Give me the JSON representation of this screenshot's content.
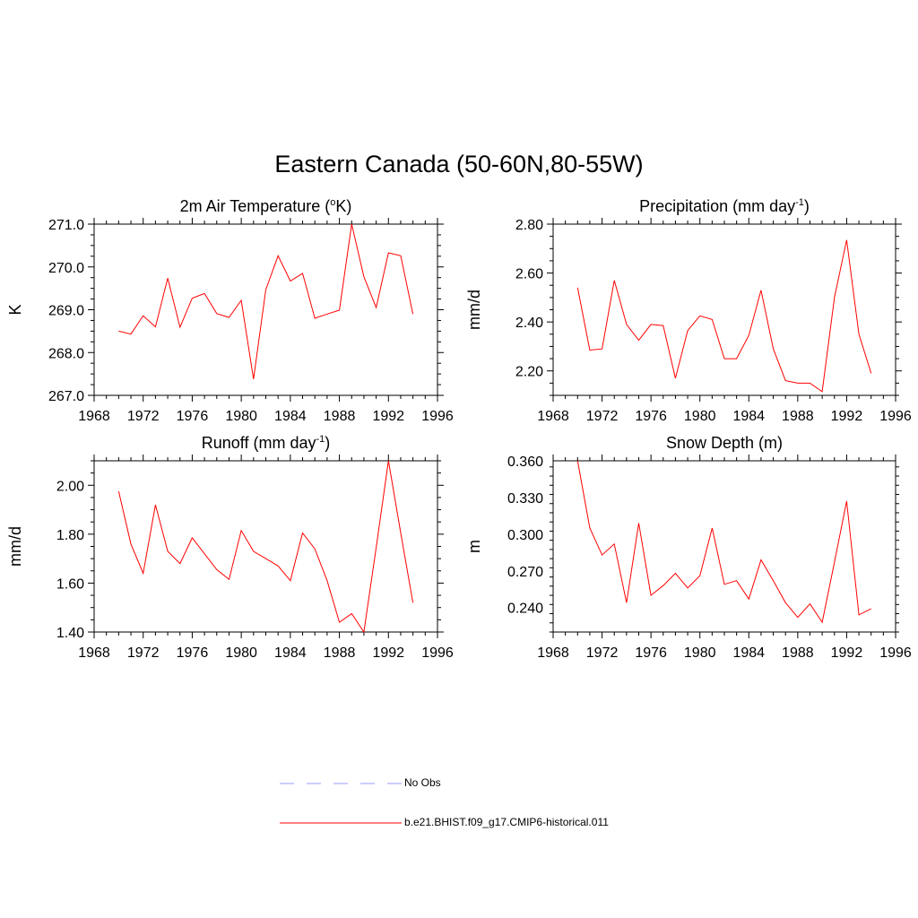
{
  "figure": {
    "title": "Eastern Canada (50-60N,80-55W)"
  },
  "legend": [
    {
      "label": "No Obs",
      "color": "#9b9bff",
      "dash": true
    },
    {
      "label": "b.e21.BHIST.f09_g17.CMIP6-historical.011",
      "color": "#ff0000",
      "dash": false
    }
  ],
  "chart_data": [
    {
      "type": "line",
      "title": "2m Air Temperature (",
      "title_sup": "o",
      "title_after": "K)",
      "ylabel": "K",
      "xlim": [
        1968,
        1996
      ],
      "xticks": [
        1968,
        1972,
        1976,
        1980,
        1984,
        1988,
        1992,
        1996
      ],
      "ylim": [
        267.0,
        271.0
      ],
      "yticks": [
        267.0,
        268.0,
        269.0,
        270.0,
        271.0
      ],
      "ydecimals": 1,
      "series": [
        {
          "color": "#ff0000",
          "x": [
            1970,
            1971,
            1972,
            1973,
            1974,
            1975,
            1976,
            1977,
            1978,
            1979,
            1980,
            1981,
            1982,
            1983,
            1984,
            1985,
            1986,
            1987,
            1988,
            1989,
            1990,
            1991,
            1992,
            1993,
            1994
          ],
          "values": [
            268.5,
            268.43,
            268.86,
            268.6,
            269.74,
            268.59,
            269.27,
            269.38,
            268.91,
            268.82,
            269.22,
            267.38,
            269.47,
            270.26,
            269.67,
            269.85,
            268.8,
            268.9,
            268.99,
            271.0,
            269.77,
            269.05,
            270.33,
            270.26,
            268.9
          ]
        }
      ]
    },
    {
      "type": "line",
      "title": "Precipitation (mm day",
      "title_sup": "-1",
      "title_after": ")",
      "ylabel": "mm/d",
      "xlim": [
        1968,
        1996
      ],
      "xticks": [
        1968,
        1972,
        1976,
        1980,
        1984,
        1988,
        1992,
        1996
      ],
      "ylim": [
        2.1,
        2.8
      ],
      "yticks": [
        2.2,
        2.4,
        2.6,
        2.8
      ],
      "ydecimals": 2,
      "series": [
        {
          "color": "#ff0000",
          "x": [
            1970,
            1971,
            1972,
            1973,
            1974,
            1975,
            1976,
            1977,
            1978,
            1979,
            1980,
            1981,
            1982,
            1983,
            1984,
            1985,
            1986,
            1987,
            1988,
            1989,
            1990,
            1991,
            1992,
            1993,
            1994
          ],
          "values": [
            2.54,
            2.285,
            2.29,
            2.57,
            2.39,
            2.325,
            2.39,
            2.385,
            2.17,
            2.365,
            2.425,
            2.41,
            2.25,
            2.25,
            2.345,
            2.53,
            2.29,
            2.16,
            2.15,
            2.15,
            2.115,
            2.5,
            2.735,
            2.35,
            2.19
          ]
        }
      ]
    },
    {
      "type": "line",
      "title": "Runoff (mm day",
      "title_sup": "-1",
      "title_after": ")",
      "ylabel": "mm/d",
      "xlim": [
        1968,
        1996
      ],
      "xticks": [
        1968,
        1972,
        1976,
        1980,
        1984,
        1988,
        1992,
        1996
      ],
      "ylim": [
        1.4,
        2.1
      ],
      "yticks": [
        1.4,
        1.6,
        1.8,
        2.0
      ],
      "ydecimals": 2,
      "series": [
        {
          "color": "#ff0000",
          "x": [
            1970,
            1971,
            1972,
            1973,
            1974,
            1975,
            1976,
            1977,
            1978,
            1979,
            1980,
            1981,
            1982,
            1983,
            1984,
            1985,
            1986,
            1987,
            1988,
            1989,
            1990,
            1991,
            1992,
            1993,
            1994
          ],
          "values": [
            1.975,
            1.76,
            1.64,
            1.92,
            1.73,
            1.68,
            1.785,
            1.72,
            1.655,
            1.615,
            1.815,
            1.73,
            1.7,
            1.67,
            1.61,
            1.805,
            1.74,
            1.61,
            1.44,
            1.475,
            1.4,
            1.745,
            2.1,
            1.805,
            1.52
          ]
        }
      ]
    },
    {
      "type": "line",
      "title": "Snow Depth (m)",
      "title_sup": "",
      "title_after": "",
      "ylabel": "m",
      "xlim": [
        1968,
        1996
      ],
      "xticks": [
        1968,
        1972,
        1976,
        1980,
        1984,
        1988,
        1992,
        1996
      ],
      "ylim": [
        0.22,
        0.36
      ],
      "yticks": [
        0.24,
        0.27,
        0.3,
        0.33,
        0.36
      ],
      "ydecimals": 3,
      "series": [
        {
          "color": "#ff0000",
          "x": [
            1970,
            1971,
            1972,
            1973,
            1974,
            1975,
            1976,
            1977,
            1978,
            1979,
            1980,
            1981,
            1982,
            1983,
            1984,
            1985,
            1986,
            1987,
            1988,
            1989,
            1990,
            1991,
            1992,
            1993,
            1994
          ],
          "values": [
            0.36,
            0.305,
            0.283,
            0.292,
            0.244,
            0.309,
            0.25,
            0.258,
            0.268,
            0.256,
            0.266,
            0.305,
            0.259,
            0.262,
            0.247,
            0.279,
            0.262,
            0.244,
            0.232,
            0.243,
            0.228,
            0.277,
            0.327,
            0.234,
            0.239
          ]
        }
      ]
    }
  ]
}
